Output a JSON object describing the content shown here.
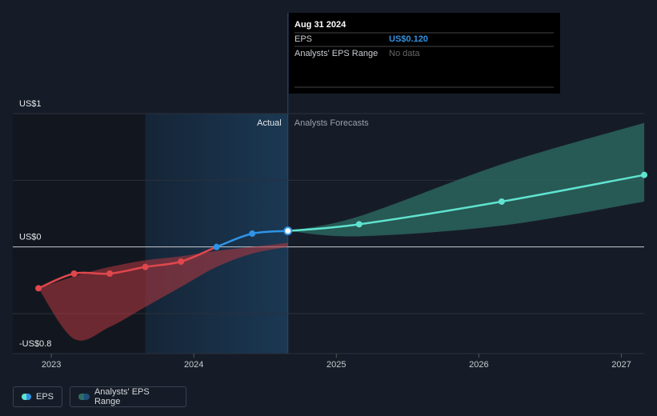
{
  "chart_data": {
    "type": "line",
    "x": [
      2022.91,
      2023.16,
      2023.41,
      2023.66,
      2023.91,
      2024.16,
      2024.41,
      2024.66
    ],
    "xlim": [
      2022.73,
      2027.16
    ],
    "xticks": [
      2023,
      2024,
      2025,
      2026,
      2027
    ],
    "ylim": [
      -0.8,
      1
    ],
    "yticks": [
      {
        "value": 1,
        "label": "US$1"
      },
      {
        "value": 0,
        "label": "US$0"
      },
      {
        "value": -0.8,
        "label": "-US$0.8"
      }
    ],
    "minor_yticks": [
      0.5,
      -0.5
    ],
    "grid": true,
    "series": [
      {
        "name": "EPS",
        "color": "#2f93e6",
        "negative_color": "#e0474c",
        "values": [
          -0.31,
          -0.2,
          -0.2,
          -0.15,
          -0.11,
          0,
          0.1,
          0.12
        ]
      }
    ],
    "past_range": {
      "low": [
        -0.31,
        -0.69,
        -0.6,
        -0.45,
        -0.3,
        -0.15,
        -0.05,
        0
      ],
      "high": [
        -0.31,
        -0.22,
        -0.15,
        -0.1,
        -0.07,
        -0.03,
        0,
        0.03
      ],
      "color": "#b8393f"
    },
    "forecast": {
      "x": [
        2024.66,
        2025.16,
        2026.16,
        2027.16
      ],
      "values": [
        0.12,
        0.17,
        0.34,
        0.54
      ],
      "low": [
        0.12,
        0.08,
        0.16,
        0.34
      ],
      "high": [
        0.12,
        0.23,
        0.62,
        0.93
      ],
      "color": "#5fe3cf",
      "range_color": "#2e6e66"
    },
    "range_name": "Analysts' EPS Range",
    "actual_label": "Actual",
    "forecast_label": "Analysts Forecasts",
    "tooltip": {
      "date": "Aug 31 2024",
      "rows": [
        {
          "label": "EPS",
          "value": "US$0.120"
        },
        {
          "label": "Analysts' EPS Range",
          "value": "No data"
        }
      ]
    }
  }
}
